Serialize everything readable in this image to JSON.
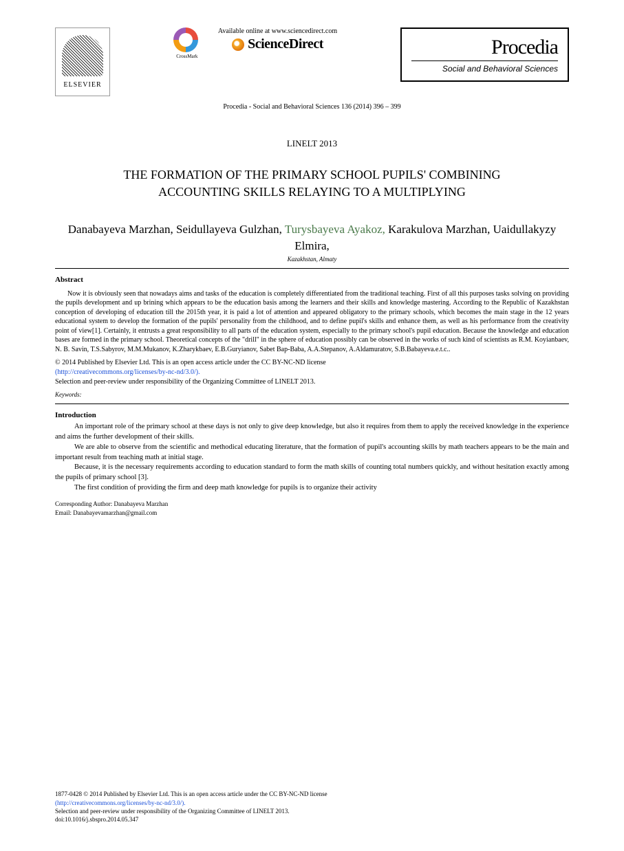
{
  "header": {
    "elsevier_label": "ELSEVIER",
    "crossmark_label": "CrossMark",
    "available_text": "Available online at www.sciencedirect.com",
    "sciencedirect": "ScienceDirect",
    "procedia_title": "Procedia",
    "procedia_subtitle": "Social and Behavioral Sciences",
    "citation": "Procedia - Social and Behavioral Sciences 136 (2014) 396 – 399"
  },
  "conference": "LINELT 2013",
  "title_line1": "THE FORMATION OF THE PRIMARY SCHOOL PUPILS' COMBINING",
  "title_line2": "ACCOUNTING SKILLS RELAYING TO A MULTIPLYING",
  "authors": {
    "a1": "Danabayeva Marzhan,",
    "a2": "Seidullayeva Gulzhan,",
    "a3": "Turysbayeva Ayakoz,",
    "a4": "Karakulova Marzhan,",
    "a5": "Uaidullakyzy Elmira,"
  },
  "affiliation": "Kazakhstan, Almaty",
  "abstract_label": "Abstract",
  "abstract_text": "Now it is obviously seen that nowadays aims and tasks of the education is completely  differentiated  from the traditional teaching. First of all this purposes tasks solving on providing the pupils development and up brining which appears to be the education basis  among the learners and their skills  and knowledge mastering. According to the Republic of Kazakhstan conception of developing of education till the 2015th year, it is paid a lot of attention and appeared  obligatory to the primary schools, which becomes the main stage in the 12 years educational system to develop  the formation  of the  pupils' personality from the childhood, and to define  pupil's skills and  enhance them, as well as  his performance from the creativity point of view[1]. Certainly,  it entrusts a great responsibility to all parts of the education system, especially to the  primary school's pupil education.  Because  the knowledge and education bases are formed in the primary school. Theoretical concepts of the \"drill\" in the sphere of education possibly can be observed in the works of such kind of scientists  as R.M. Koyianbaev, N. B. Savin, T.S.Sabyrov,  M.M.Mukanov,  K.Zharykbaev,  E.B.Guryianov,  Sabet  Bap-Baba,  A.A.Stepanov,  A.Aldamuratov, S.B.Babayeva.e.t.c..",
  "copyright1": "© 2014 Published by Elsevier Ltd. This is an open access article under the CC BY-NC-ND license",
  "license_link": "(http://creativecommons.org/licenses/by-nc-nd/3.0/).",
  "selection": "Selection and peer-review under responsibility of the Organizing Committee of LINELT 2013.",
  "keywords_label": "Keywords:",
  "intro_label": "Introduction",
  "intro_p1": "An important role of the primary school at these days is not only to give deep knowledge, but also it requires from them to apply  the received knowledge in the experience and aims the further development of  their skills.",
  "intro_p2": "We are able to observe from the scientific and methodical educating literature,  that the formation of pupil's accounting skills by math teachers appears to be the   main and important result from teaching math at initial stage.",
  "intro_p3": "Because, it is the necessary requirements according to education standard to form the math skills of  counting total numbers quickly, and without hesitation exactly among the pupils of primary school  [3].",
  "intro_p4": "The first condition of providing the firm and deep math knowledge for pupils is to organize their activity",
  "corresponding_label": "Corresponding Author: Danabayeva Marzhan",
  "corresponding_email": "Email:  Danabayevamarzhan@gmail.com",
  "footer": {
    "line1": "1877-0428 © 2014 Published by Elsevier Ltd. This is an open access article under the CC BY-NC-ND license",
    "line2": "(http://creativecommons.org/licenses/by-nc-nd/3.0/).",
    "line3": "Selection and peer-review under responsibility of the Organizing Committee of LINELT 2013.",
    "doi": "doi:10.1016/j.sbspro.2014.05.347"
  },
  "colors": {
    "text": "#000000",
    "link": "#1a4fd8",
    "author_highlight": "#4a7a4a",
    "background": "#ffffff"
  },
  "fonts": {
    "body_size_pt": 10.5,
    "abstract_size_pt": 10,
    "title_size_pt": 18,
    "author_size_pt": 17,
    "procedia_size_pt": 30
  }
}
